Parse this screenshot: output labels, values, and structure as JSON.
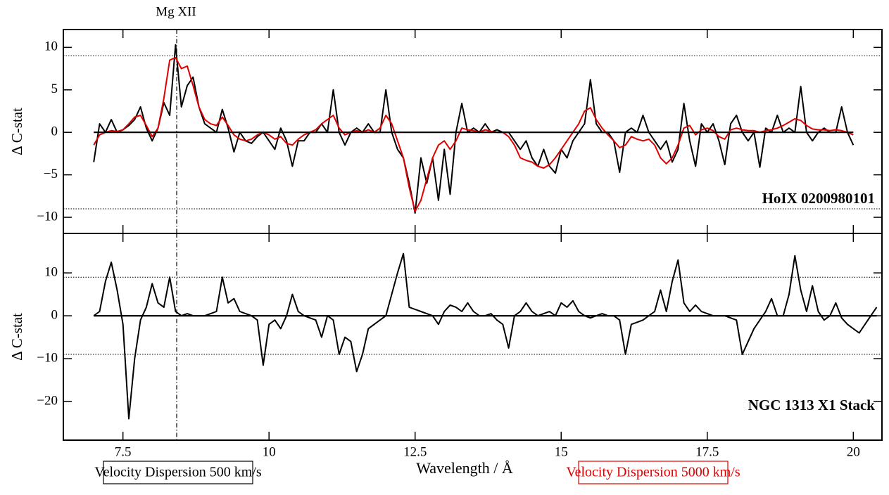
{
  "chart_data": [
    {
      "type": "line",
      "annotation": "Mg XII",
      "vline": 8.42,
      "panel_label": "HoIX 0200980101",
      "y_label": "Δ C-stat",
      "xlim": [
        6.48,
        20.49
      ],
      "xticks": [
        7.5,
        10,
        12.5,
        15,
        17.5,
        20
      ],
      "ylim": [
        -11.9,
        12.1
      ],
      "yticks": [
        {
          "value": -10,
          "label": "−10"
        },
        {
          "value": -5,
          "label": "−5"
        },
        0,
        5,
        10
      ],
      "hline": 0,
      "dotted_lines": [
        -9,
        9
      ],
      "x": [
        7,
        7.1,
        7.2,
        7.3,
        7.4,
        7.5,
        7.6,
        7.7,
        7.8,
        7.9,
        8,
        8.1,
        8.2,
        8.3,
        8.4,
        8.5,
        8.6,
        8.7,
        8.8,
        8.9,
        9,
        9.1,
        9.2,
        9.3,
        9.4,
        9.5,
        9.6,
        9.7,
        9.8,
        9.9,
        10,
        10.1,
        10.2,
        10.3,
        10.4,
        10.5,
        10.6,
        10.7,
        10.8,
        10.9,
        11,
        11.1,
        11.2,
        11.3,
        11.4,
        11.5,
        11.6,
        11.7,
        11.8,
        11.9,
        12,
        12.1,
        12.2,
        12.3,
        12.4,
        12.5,
        12.6,
        12.7,
        12.8,
        12.9,
        13,
        13.1,
        13.2,
        13.3,
        13.4,
        13.5,
        13.6,
        13.7,
        13.8,
        13.9,
        14,
        14.1,
        14.2,
        14.3,
        14.4,
        14.5,
        14.6,
        14.7,
        14.8,
        14.9,
        15,
        15.1,
        15.2,
        15.3,
        15.4,
        15.5,
        15.6,
        15.7,
        15.8,
        15.9,
        16,
        16.1,
        16.2,
        16.3,
        16.4,
        16.5,
        16.6,
        16.7,
        16.8,
        16.9,
        17,
        17.1,
        17.2,
        17.3,
        17.4,
        17.5,
        17.6,
        17.7,
        17.8,
        17.9,
        18,
        18.1,
        18.2,
        18.3,
        18.4,
        18.5,
        18.6,
        18.7,
        18.8,
        18.9,
        19,
        19.1,
        19.2,
        19.3,
        19.4,
        19.5,
        19.6,
        19.7,
        19.8,
        19.9,
        20
      ],
      "series": [
        {
          "name": "Velocity Dispersion 500 km/s",
          "color": "#000000",
          "values": [
            -3.5,
            1,
            0,
            1.5,
            0,
            0.3,
            0.8,
            1.5,
            3,
            0.5,
            -1,
            0.5,
            3.5,
            2,
            10.3,
            3,
            5.5,
            6.5,
            3,
            1,
            0.5,
            0,
            2.7,
            0.5,
            -2.3,
            0,
            -1,
            -1.3,
            -0.5,
            0,
            -1,
            -2,
            0.5,
            -1,
            -4,
            -1,
            -1,
            0,
            0,
            1,
            0,
            5,
            0,
            -1.5,
            0,
            0.5,
            0,
            1,
            0,
            0,
            5,
            0,
            -2,
            -3,
            -6,
            -9.5,
            -3,
            -6,
            -3,
            -8,
            -2,
            -7.3,
            0,
            3.4,
            0,
            0.5,
            0,
            1,
            0,
            0.3,
            0,
            0,
            -1,
            -2,
            -1,
            -3,
            -4,
            -2,
            -4,
            -4.8,
            -2,
            -3,
            -1,
            0,
            1,
            6.2,
            1,
            0,
            0,
            -1,
            -4.7,
            0,
            0.5,
            0,
            2,
            0,
            -1,
            -2,
            -1,
            -3.5,
            -2,
            3.4,
            -1,
            -4,
            1,
            0,
            1,
            -1,
            -3.8,
            1,
            2,
            0,
            -1,
            0,
            -4.1,
            0.5,
            0,
            2,
            0,
            0.5,
            0,
            5.4,
            0,
            -1,
            0,
            0.5,
            0,
            0,
            3,
            0,
            -1.5
          ]
        },
        {
          "name": "Velocity Dispersion 5000 km/s",
          "color": "#e00000",
          "values": [
            -1.5,
            -0.3,
            0,
            0.2,
            0.1,
            0.3,
            1,
            1.8,
            2,
            0.8,
            -0.5,
            0.5,
            4,
            8.5,
            8.8,
            7.5,
            7.8,
            5.5,
            3,
            1.5,
            1,
            0.8,
            1.8,
            0.8,
            -0.3,
            -0.8,
            -1,
            -0.8,
            -0.3,
            0,
            -0.3,
            -0.8,
            -0.5,
            -1.3,
            -1.5,
            -0.8,
            -0.3,
            0,
            0.3,
            1,
            1.5,
            2,
            0.5,
            -0.3,
            0,
            0.2,
            0,
            0.3,
            0,
            0.5,
            2,
            1,
            -1,
            -3,
            -6.5,
            -9.3,
            -8,
            -5.5,
            -3,
            -1.5,
            -1,
            -2,
            -1,
            0.5,
            0.3,
            0.2,
            0,
            0.3,
            0.1,
            0,
            0,
            -0.5,
            -1.5,
            -3,
            -3.3,
            -3.5,
            -4,
            -4.2,
            -3.8,
            -3,
            -2,
            -1,
            0,
            1,
            2.5,
            2.9,
            1.5,
            0.5,
            -0.3,
            -1,
            -1.8,
            -1.5,
            -0.5,
            -0.8,
            -1,
            -0.8,
            -1.5,
            -3,
            -3.7,
            -3,
            -1.5,
            0.5,
            0.8,
            -0.3,
            0.3,
            0.5,
            0.2,
            -0.5,
            -0.8,
            0.3,
            0.5,
            0.3,
            0.2,
            0.2,
            0,
            0.2,
            0.3,
            0.5,
            0.8,
            1.2,
            1.6,
            1.4,
            0.8,
            0.4,
            0.3,
            0.3,
            0.2,
            0.3,
            0.2,
            0,
            -0.3
          ]
        }
      ]
    },
    {
      "type": "line",
      "vline": 8.42,
      "panel_label": "NGC 1313 X1 Stack",
      "x_label": "Wavelength / Å",
      "y_label": "Δ C-stat",
      "xlim": [
        6.48,
        20.49
      ],
      "xticks": [
        7.5,
        10,
        12.5,
        15,
        17.5,
        20
      ],
      "ylim": [
        -29,
        19.2
      ],
      "yticks": [
        {
          "value": -20,
          "label": "−20"
        },
        {
          "value": -10,
          "label": "−10"
        },
        0,
        10
      ],
      "hline": 0,
      "dotted_lines": [
        -9,
        9
      ],
      "x": [
        7,
        7.1,
        7.2,
        7.3,
        7.4,
        7.5,
        7.6,
        7.7,
        7.8,
        7.9,
        8,
        8.1,
        8.2,
        8.3,
        8.4,
        8.5,
        8.6,
        8.7,
        8.8,
        8.9,
        9,
        9.1,
        9.2,
        9.3,
        9.4,
        9.5,
        9.6,
        9.7,
        9.8,
        9.9,
        10,
        10.1,
        10.2,
        10.3,
        10.4,
        10.5,
        10.6,
        10.7,
        10.8,
        10.9,
        11,
        11.1,
        11.2,
        11.3,
        11.4,
        11.5,
        11.6,
        11.7,
        11.8,
        11.9,
        12,
        12.1,
        12.2,
        12.3,
        12.4,
        12.5,
        12.6,
        12.7,
        12.8,
        12.9,
        13,
        13.1,
        13.2,
        13.3,
        13.4,
        13.5,
        13.6,
        13.7,
        13.8,
        13.9,
        14,
        14.1,
        14.2,
        14.3,
        14.4,
        14.5,
        14.6,
        14.7,
        14.8,
        14.9,
        15,
        15.1,
        15.2,
        15.3,
        15.4,
        15.5,
        15.6,
        15.7,
        15.8,
        15.9,
        16,
        16.1,
        16.2,
        16.3,
        16.4,
        16.5,
        16.6,
        16.7,
        16.8,
        16.9,
        17,
        17.1,
        17.2,
        17.3,
        17.4,
        17.5,
        17.6,
        17.7,
        17.8,
        17.9,
        18,
        18.1,
        18.2,
        18.3,
        18.4,
        18.5,
        18.6,
        18.7,
        18.8,
        18.9,
        19,
        19.1,
        19.2,
        19.3,
        19.4,
        19.5,
        19.6,
        19.7,
        19.8,
        19.9,
        20,
        20.1,
        20.2,
        20.3,
        20.4
      ],
      "series": [
        {
          "color": "#000000",
          "values": [
            0,
            1,
            8,
            12.5,
            6,
            -2,
            -24,
            -10,
            -1,
            2,
            7.5,
            3,
            2,
            9,
            1,
            0,
            0.5,
            0,
            0,
            0,
            0.5,
            1,
            9,
            3,
            4,
            1,
            0.5,
            0,
            -1,
            -11.5,
            -2,
            -1,
            -3,
            0,
            5,
            1,
            0,
            -0.5,
            -1,
            -5,
            0,
            -1,
            -9,
            -5,
            -6,
            -13,
            -9,
            -3,
            -2,
            -1,
            0,
            5,
            10,
            14.5,
            2,
            1.5,
            1,
            0.5,
            0,
            -2,
            1,
            2.5,
            2,
            1,
            3,
            1,
            0,
            0,
            0.5,
            -1,
            -2,
            -7.5,
            0,
            1,
            3,
            1,
            0,
            0.5,
            1,
            0,
            3,
            2,
            3.5,
            1,
            0,
            -0.5,
            0,
            0.5,
            0,
            0,
            -1,
            -9,
            -2,
            -1.5,
            -1,
            0,
            1,
            6,
            1,
            8,
            13,
            3,
            1,
            2.5,
            1,
            0.5,
            0,
            0,
            0,
            -0.5,
            -1,
            -9,
            -6,
            -3,
            -1,
            1,
            4,
            0,
            0,
            5,
            14,
            6,
            1,
            7,
            1,
            -1,
            0,
            3,
            -0.5,
            -2,
            -3,
            -4,
            -2,
            0,
            2
          ]
        }
      ]
    }
  ]
}
